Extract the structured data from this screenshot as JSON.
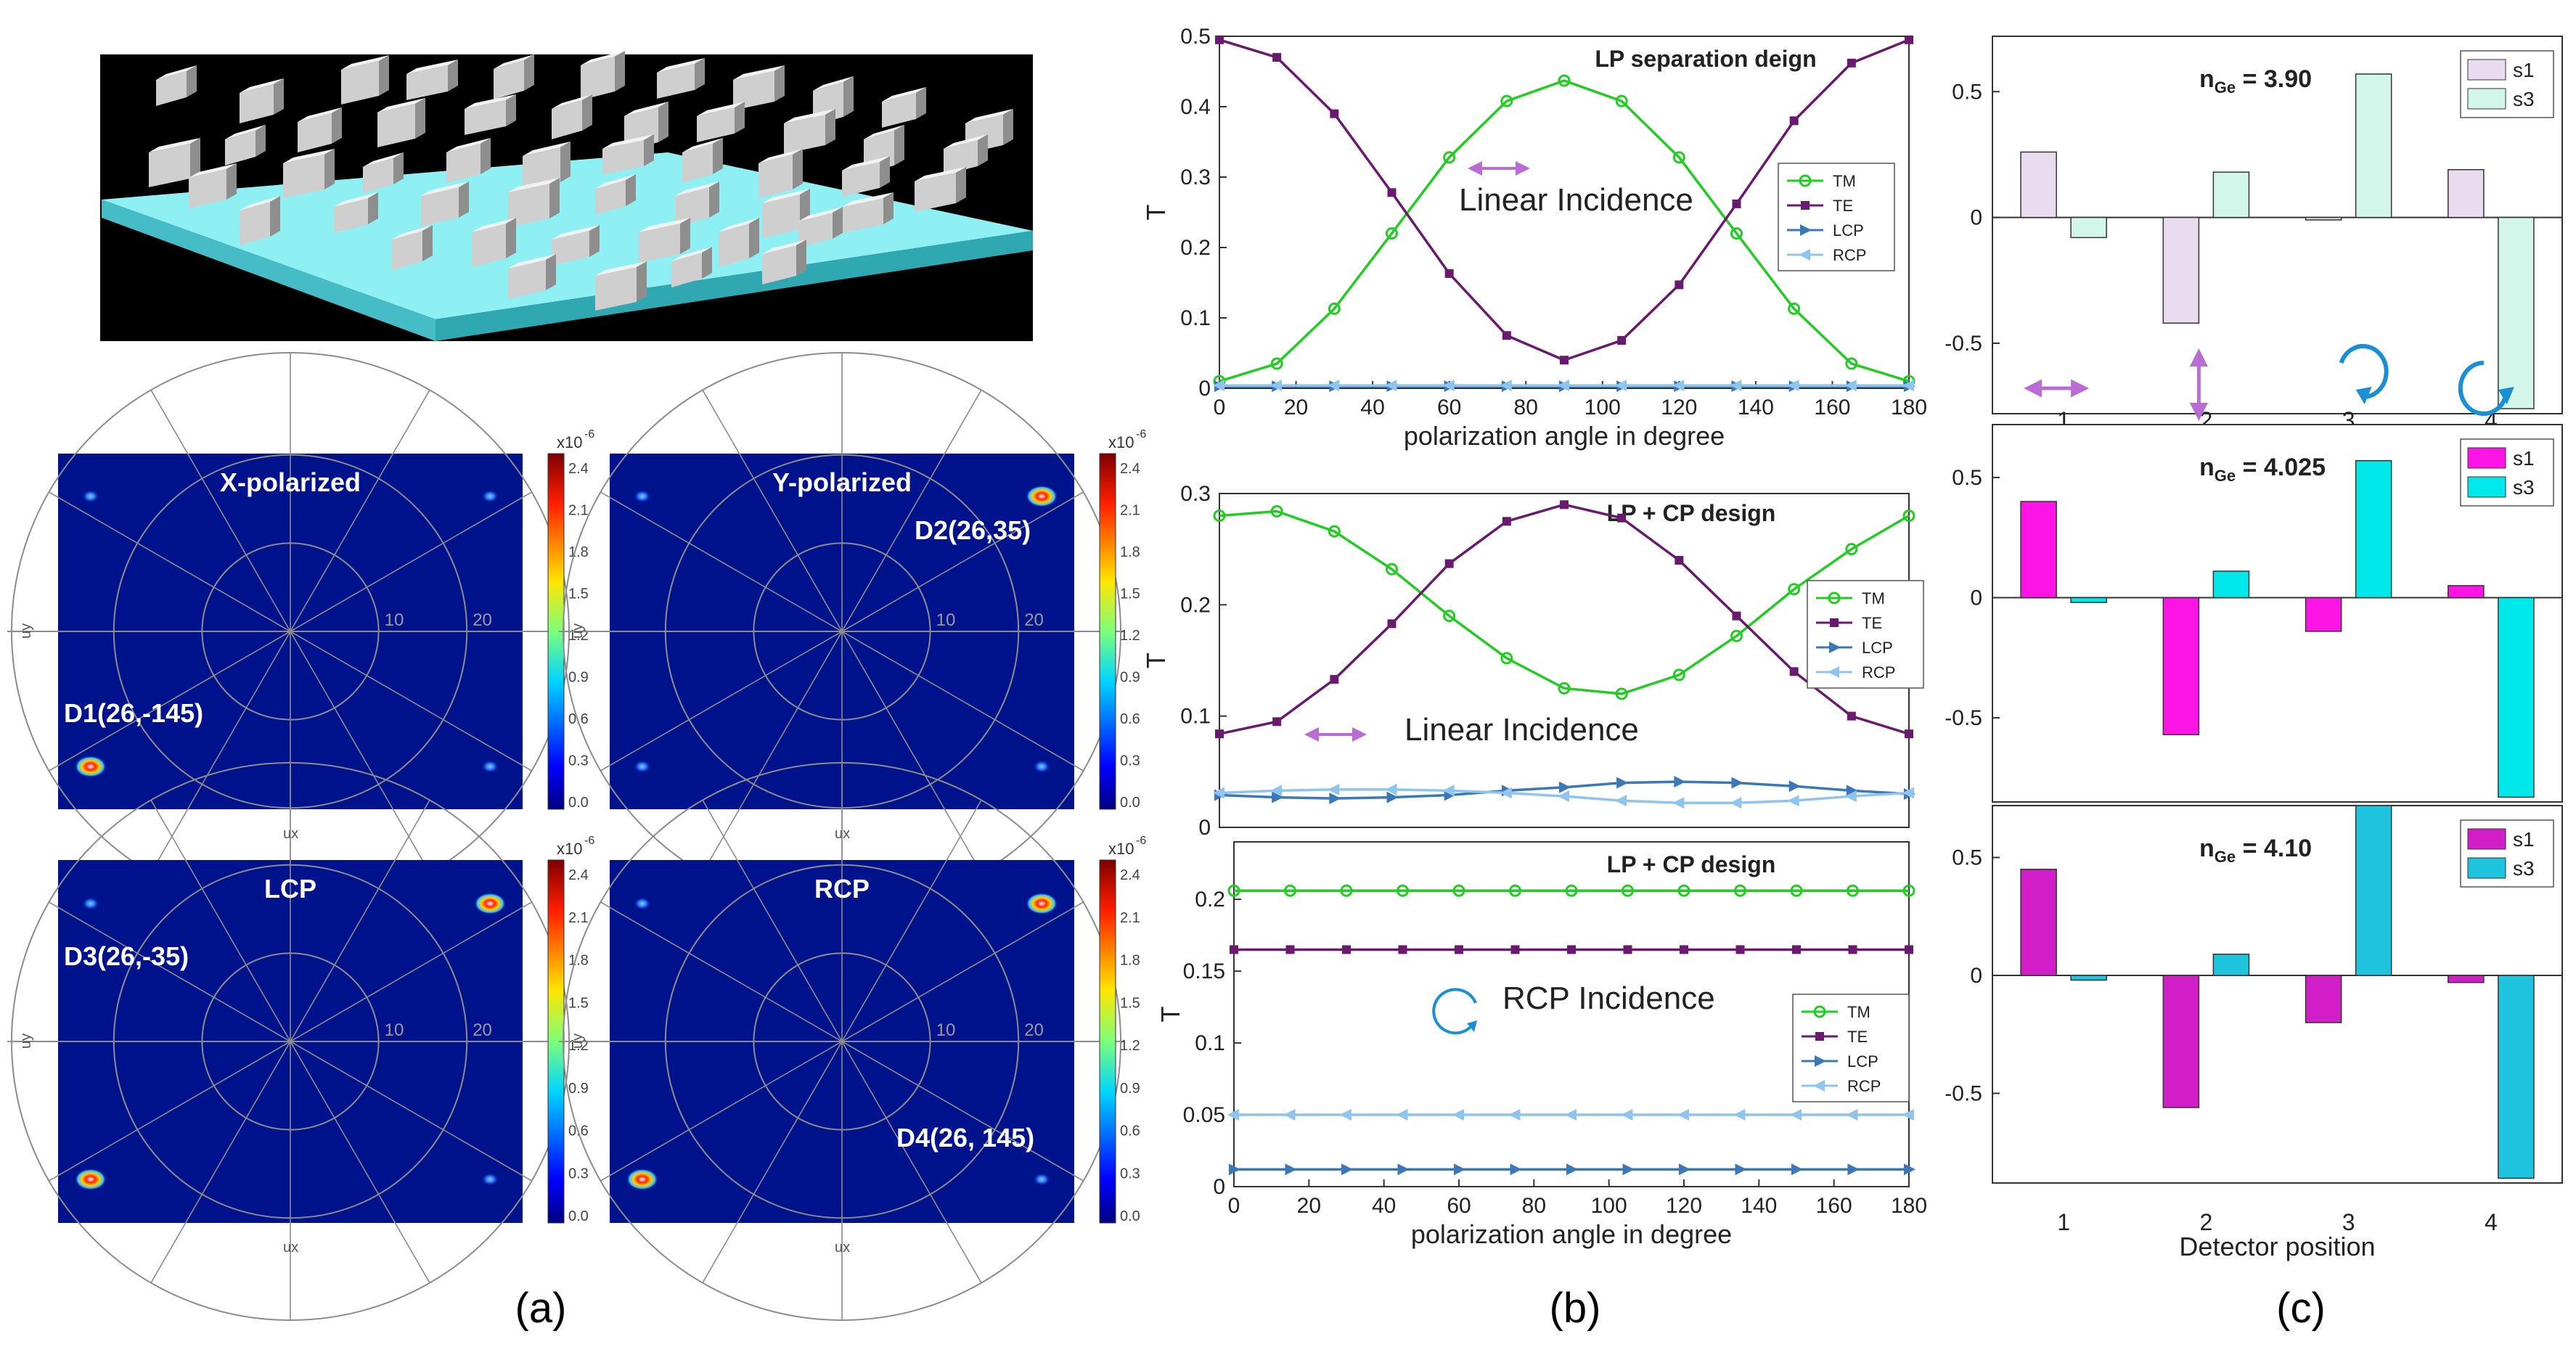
{
  "figure": {
    "captions": [
      "(a)",
      "(b)",
      "(c)"
    ]
  },
  "colors": {
    "TM": "#22cc22",
    "TE": "#6a1a6e",
    "LCP": "#3a78b8",
    "RCP": "#8ec4ee",
    "farfield_bg": "#00138c",
    "substrate": "#7fe8f0",
    "arrow": "#b86cd4",
    "circle": "#1a8fd6"
  },
  "panel_a": {
    "farfield_maps": [
      {
        "title": "X-polarized",
        "label": "D1(26,-145)",
        "rings": [
          "10",
          "20"
        ],
        "ux": "ux",
        "uy": "uy"
      },
      {
        "title": "Y-polarized",
        "label": "D2(26,35)",
        "rings": [
          "10",
          "20"
        ],
        "ux": "ux",
        "uy": "uy"
      },
      {
        "title": "LCP",
        "label": "D3(26,-35)",
        "rings": [
          "10",
          "20"
        ],
        "ux": "ux",
        "uy": "uy"
      },
      {
        "title": "RCP",
        "label": "D4(26, 145)",
        "rings": [
          "10",
          "20"
        ],
        "ux": "ux",
        "uy": "uy"
      }
    ],
    "colorbar": {
      "exponent": "x10",
      "exponent_power": "-6",
      "ticks": [
        "2.4",
        "2.1",
        "1.8",
        "1.5",
        "1.2",
        "0.9",
        "0.6",
        "0.3",
        "0.0"
      ]
    }
  },
  "chart_data": [
    {
      "type": "line",
      "title": "LP separation deign",
      "annotation": "Linear Incidence",
      "xlabel": "polarization angle in degree",
      "ylabel": "T",
      "xlim": [
        0,
        180
      ],
      "ylim": [
        0,
        0.5
      ],
      "xticks": [
        "0",
        "20",
        "40",
        "60",
        "80",
        "100",
        "120",
        "140",
        "160",
        "180"
      ],
      "yticks": [
        "0",
        "0.1",
        "0.2",
        "0.3",
        "0.4",
        "0.5"
      ],
      "x": [
        0,
        15,
        30,
        45,
        60,
        75,
        90,
        105,
        120,
        135,
        150,
        165,
        180
      ],
      "series": [
        {
          "name": "TM",
          "values": [
            0.01,
            0.035,
            0.113,
            0.22,
            0.328,
            0.408,
            0.437,
            0.408,
            0.328,
            0.22,
            0.113,
            0.035,
            0.01
          ]
        },
        {
          "name": "TE",
          "values": [
            0.495,
            0.47,
            0.39,
            0.278,
            0.163,
            0.075,
            0.04,
            0.068,
            0.147,
            0.262,
            0.38,
            0.462,
            0.495
          ]
        },
        {
          "name": "LCP",
          "values": [
            0.003,
            0.003,
            0.003,
            0.003,
            0.003,
            0.003,
            0.003,
            0.003,
            0.003,
            0.003,
            0.003,
            0.003,
            0.003
          ]
        },
        {
          "name": "RCP",
          "values": [
            0.004,
            0.004,
            0.004,
            0.004,
            0.004,
            0.004,
            0.004,
            0.004,
            0.004,
            0.004,
            0.004,
            0.004,
            0.004
          ]
        }
      ]
    },
    {
      "type": "line",
      "title": "LP + CP design",
      "annotation": "Linear Incidence",
      "xlabel": "",
      "ylabel": "T",
      "xlim": [
        0,
        180
      ],
      "ylim": [
        0,
        0.3
      ],
      "xticks": [],
      "yticks": [
        "0",
        "0.1",
        "0.2",
        "0.3"
      ],
      "x": [
        0,
        15,
        30,
        45,
        60,
        75,
        90,
        105,
        120,
        135,
        150,
        165,
        180
      ],
      "series": [
        {
          "name": "TM",
          "values": [
            0.28,
            0.284,
            0.266,
            0.232,
            0.19,
            0.152,
            0.125,
            0.12,
            0.137,
            0.172,
            0.214,
            0.25,
            0.28
          ]
        },
        {
          "name": "TE",
          "values": [
            0.084,
            0.095,
            0.133,
            0.183,
            0.237,
            0.275,
            0.29,
            0.278,
            0.24,
            0.19,
            0.14,
            0.1,
            0.084
          ]
        },
        {
          "name": "LCP",
          "values": [
            0.029,
            0.027,
            0.026,
            0.027,
            0.029,
            0.033,
            0.036,
            0.04,
            0.041,
            0.04,
            0.037,
            0.033,
            0.03
          ]
        },
        {
          "name": "RCP",
          "values": [
            0.031,
            0.033,
            0.034,
            0.034,
            0.033,
            0.031,
            0.028,
            0.024,
            0.022,
            0.022,
            0.024,
            0.028,
            0.031
          ]
        }
      ]
    },
    {
      "type": "line",
      "title": "LP + CP design",
      "annotation": "RCP Incidence",
      "xlabel": "polarization angle in degree",
      "ylabel": "T",
      "xlim": [
        0,
        180
      ],
      "ylim": [
        0,
        0.24
      ],
      "xticks": [
        "0",
        "20",
        "40",
        "60",
        "80",
        "100",
        "120",
        "140",
        "160",
        "180"
      ],
      "yticks": [
        "0",
        "0.05",
        "0.1",
        "0.15",
        "0.2"
      ],
      "x": [
        0,
        15,
        30,
        45,
        60,
        75,
        90,
        105,
        120,
        135,
        150,
        165,
        180
      ],
      "series": [
        {
          "name": "TM",
          "values": [
            0.206,
            0.206,
            0.206,
            0.206,
            0.206,
            0.206,
            0.206,
            0.206,
            0.206,
            0.206,
            0.206,
            0.206,
            0.206
          ]
        },
        {
          "name": "TE",
          "values": [
            0.165,
            0.165,
            0.165,
            0.165,
            0.165,
            0.165,
            0.165,
            0.165,
            0.165,
            0.165,
            0.165,
            0.165,
            0.165
          ]
        },
        {
          "name": "LCP",
          "values": [
            0.012,
            0.012,
            0.012,
            0.012,
            0.012,
            0.012,
            0.012,
            0.012,
            0.012,
            0.012,
            0.012,
            0.012,
            0.012
          ]
        },
        {
          "name": "RCP",
          "values": [
            0.05,
            0.05,
            0.05,
            0.05,
            0.05,
            0.05,
            0.05,
            0.05,
            0.05,
            0.05,
            0.05,
            0.05,
            0.05
          ]
        }
      ]
    },
    {
      "type": "bar",
      "annotation_label": "n",
      "annotation_sub": "Ge",
      "annotation_value": " = 3.90",
      "categories": [
        "1",
        "2",
        "3",
        "4"
      ],
      "ylim": [
        -0.78,
        0.72
      ],
      "yticks": [
        "0.5",
        "0",
        "-0.5"
      ],
      "legend": [
        "s1",
        "s3"
      ],
      "series": [
        {
          "name": "s1",
          "color": "#eadcf0",
          "values": [
            0.26,
            -0.42,
            -0.01,
            0.19
          ]
        },
        {
          "name": "s3",
          "color": "#d2f6ea",
          "values": [
            -0.08,
            0.18,
            0.57,
            -0.76
          ]
        }
      ]
    },
    {
      "type": "bar",
      "annotation_label": "n",
      "annotation_sub": "Ge",
      "annotation_value": " = 4.025",
      "categories": [
        "1",
        "2",
        "3",
        "4"
      ],
      "ylim": [
        -0.85,
        0.72
      ],
      "yticks": [
        "0.5",
        "0",
        "-0.5"
      ],
      "legend": [
        "s1",
        "s3"
      ],
      "series": [
        {
          "name": "s1",
          "color": "#ff14e6",
          "values": [
            0.4,
            -0.57,
            -0.14,
            0.05
          ]
        },
        {
          "name": "s3",
          "color": "#00e8ea",
          "values": [
            -0.02,
            0.11,
            0.57,
            -0.83
          ]
        }
      ]
    },
    {
      "type": "bar",
      "annotation_label": "n",
      "annotation_sub": "Ge",
      "annotation_value": " = 4.10",
      "categories": [
        "1",
        "2",
        "3",
        "4"
      ],
      "xlabel": "Detector position",
      "ylim": [
        -0.88,
        0.72
      ],
      "yticks": [
        "0.5",
        "0",
        "-0.5"
      ],
      "legend": [
        "s1",
        "s3"
      ],
      "series": [
        {
          "name": "s1",
          "color": "#d21ec8",
          "values": [
            0.45,
            -0.56,
            -0.2,
            -0.03
          ]
        },
        {
          "name": "s3",
          "color": "#1ec4de",
          "values": [
            -0.02,
            0.09,
            0.72,
            -0.86
          ]
        }
      ]
    }
  ]
}
